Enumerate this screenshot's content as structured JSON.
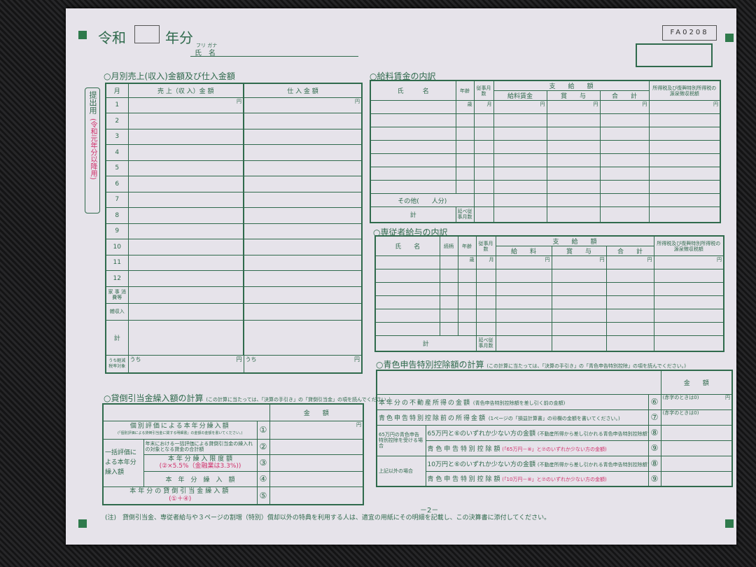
{
  "header": {
    "era": "令和",
    "year_suffix": "年分",
    "furigana": "フリ ガナ",
    "name_label": "氏　名",
    "form_code": "FA0208"
  },
  "side_label": {
    "submit": "提出用",
    "applicability": "(令和元年分以降用)"
  },
  "monthly": {
    "title": "○月別売上(収入)金額及び仕入金額",
    "headers": [
      "月",
      "売 上（収 入）金 額",
      "仕 入 金 額"
    ],
    "yen": "円",
    "months": [
      "1",
      "2",
      "3",
      "4",
      "5",
      "6",
      "7",
      "8",
      "9",
      "10",
      "11",
      "12"
    ],
    "extra_rows": [
      "家 事 消費等",
      "雑収入",
      "計"
    ],
    "reduced_label": "うち軽減税率対象",
    "uchi": "うち"
  },
  "wages": {
    "title": "○給料賃金の内訳",
    "headers": {
      "name": "氏　　　名",
      "age": "年齢",
      "months": "従事月数",
      "paid": "支　　給　　額",
      "salary": "給料賃金",
      "bonus": "賞　　与",
      "total": "合　　計",
      "tax": "所得税及び復興特別所得税の源泉徴収税額"
    },
    "age_unit": "歳",
    "month_unit": "月",
    "yen": "円",
    "other": "その他(　　人分)",
    "sum": "計",
    "total_months": "延べ従事月数"
  },
  "family": {
    "title": "○専従者給与の内訳",
    "headers": {
      "name": "氏　　名",
      "relation": "続柄",
      "age": "年齢",
      "months": "従事月数",
      "paid": "支　　給　　額",
      "salary": "給　　料",
      "bonus": "賞　　与",
      "total": "合　　計",
      "tax": "所得税及び復興特別所得税の源泉徴収税額"
    },
    "age_unit": "歳",
    "month_unit": "月",
    "yen": "円",
    "sum": "計",
    "total_months": "延べ従事月数"
  },
  "bad_debt": {
    "title": "○貸倒引当金繰入額の計算",
    "note": "(この計算に当たっては、「決算の手引き」の「貸倒引当金」の項を読んでください。)",
    "amount_header": "金　　額",
    "yen": "円",
    "rows": [
      {
        "label": "個別評価による本年分繰入額",
        "sub": "(「個別評価による貸倒引当金に関する明細書」の金額の金額を書いてください。)",
        "num": "①"
      },
      {
        "label": "年末における一括評価による貸倒引当金の繰入れの対象となる貸金の合計額",
        "num": "②"
      },
      {
        "label": "本 年 分 繰 入 限 度 額",
        "sub": "(②×5.5%（金融業は3.3%))",
        "num": "③"
      },
      {
        "label": "本　年　分　繰　入　額",
        "num": "④"
      },
      {
        "label": "本年分の貸倒引当金繰入額",
        "sub": "(①＋④)",
        "num": "⑤"
      }
    ],
    "group_label": "一括評価による本年分繰入額"
  },
  "blue": {
    "title": "○青色申告特別控除額の計算",
    "note": "(この計算に当たっては、「決算の手引き」の「青色申告特別控除」の項を読んでください。)",
    "amount_header": "金　　額",
    "yen": "円",
    "negative_note": "(赤字のときは0)",
    "rows": [
      {
        "label": "本年分の不動産所得の金額",
        "sub": "(青色申告特別控除額を差し引く前の金額)",
        "num": "⑥"
      },
      {
        "label": "青色申告特別控除前の所得金額",
        "sub": "(1ページの「損益計算書」の㊸欄の金額を書いてください。)",
        "num": "⑦"
      }
    ],
    "group65": {
      "label": "65万円の青色申告特別控除を受ける場合",
      "rows": [
        {
          "label": "65万円と⑥のいずれか少ない方の金額",
          "sub": "(不動産所得から差し引かれる青色申告特別控除額です。)",
          "num": "⑧"
        },
        {
          "label": "青 色 申 告 特 別 控 除 額",
          "sub": "(「65万円－⑧」と⑦のいずれか少ない方の金額)",
          "num": "⑨"
        }
      ]
    },
    "group10": {
      "label": "上記以外の場合",
      "rows": [
        {
          "label": "10万円と⑥のいずれか少ない方の金額",
          "sub": "(不動産所得から差し引かれる青色申告特別控除額です。)",
          "num": "⑧"
        },
        {
          "label": "青 色 申 告 特 別 控 除 額",
          "sub": "(「10万円－⑧」と⑦のいずれか少ない方の金額)",
          "num": "⑨"
        }
      ]
    }
  },
  "footer": {
    "note": "(注)　貸倒引当金、専従者給与や３ページの割増（特別）償却以外の特典を利用する人は、適宜の用紙にその明細を記載し、この決算書に添付してください。",
    "page": "－2－"
  },
  "colors": {
    "ink": "#2f6a4c",
    "red": "#d0306a",
    "paper": "#e6e3ea"
  }
}
